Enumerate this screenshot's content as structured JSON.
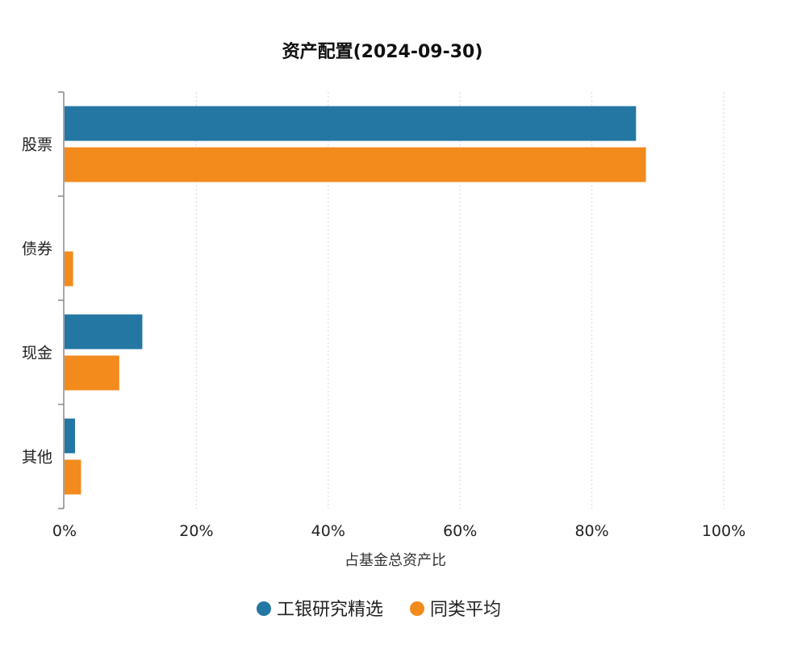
{
  "chart_data": {
    "type": "bar",
    "orientation": "horizontal",
    "title": "资产配置(2024-09-30)",
    "xlabel": "占基金总资产比",
    "ylabel": "",
    "categories": [
      "股票",
      "债券",
      "现金",
      "其他"
    ],
    "x_ticks": [
      "0%",
      "20%",
      "40%",
      "60%",
      "80%",
      "100%"
    ],
    "xlim": [
      0,
      100
    ],
    "grid": "vertical-dashed",
    "legend_position": "bottom-center",
    "series": [
      {
        "name": "工银研究精选",
        "color": "#2476a3",
        "values": [
          86.7,
          0,
          11.8,
          1.6
        ]
      },
      {
        "name": "同类平均",
        "color": "#f28a1c",
        "values": [
          88.2,
          1.3,
          8.3,
          2.5
        ]
      }
    ]
  }
}
